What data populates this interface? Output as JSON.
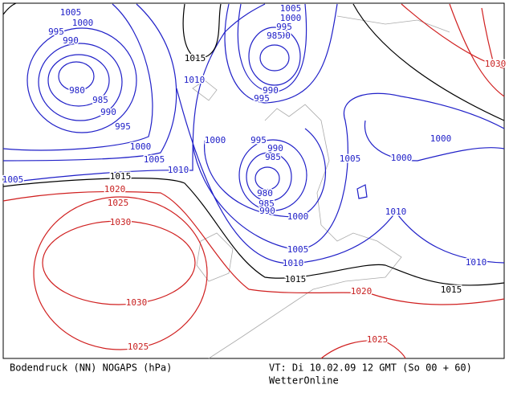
{
  "footer": {
    "title": "Bodendruck (NN) NOGAPS (hPa)",
    "valid_time": "VT: Di 10.02.09 12 GMT (So 00 + 60)",
    "source": "WetterOnline"
  },
  "isobar_labels": [
    "1005",
    "1000",
    "995",
    "990",
    "980",
    "985",
    "990",
    "995",
    "1000",
    "1005",
    "1010",
    "1015",
    "1020",
    "1025",
    "1030",
    "1030",
    "1025",
    "1005",
    "1005",
    "1000",
    "995",
    "990",
    "985",
    "1015",
    "1010",
    "990",
    "995",
    "1000",
    "995",
    "990",
    "985",
    "980",
    "985",
    "990",
    "1000",
    "1005",
    "1010",
    "1015",
    "1020",
    "1015",
    "1005",
    "1000",
    "1000",
    "1010",
    "1010",
    "1030",
    "1025"
  ]
}
